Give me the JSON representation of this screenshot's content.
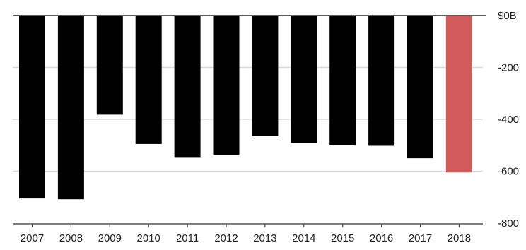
{
  "chart_data": {
    "type": "bar",
    "title": "",
    "xlabel": "",
    "ylabel": "",
    "categories": [
      "2007",
      "2008",
      "2009",
      "2010",
      "2011",
      "2012",
      "2013",
      "2014",
      "2015",
      "2016",
      "2017",
      "2018"
    ],
    "values": [
      -705,
      -708,
      -382,
      -495,
      -548,
      -538,
      -465,
      -490,
      -500,
      -502,
      -550,
      -605
    ],
    "bar_colors": [
      "#000000",
      "#000000",
      "#000000",
      "#000000",
      "#000000",
      "#000000",
      "#000000",
      "#000000",
      "#000000",
      "#000000",
      "#000000",
      "#d35a5a"
    ],
    "ylim": [
      -800,
      0
    ],
    "yticks": [
      {
        "value": 0,
        "label": "$0B"
      },
      {
        "value": -200,
        "label": "-200"
      },
      {
        "value": -400,
        "label": "-400"
      },
      {
        "value": -600,
        "label": "-600"
      },
      {
        "value": -800,
        "label": "-800"
      }
    ],
    "y_axis_position": "right",
    "grid": true,
    "legend": "none",
    "colors": {
      "bar": "#000000",
      "highlight_bar": "#d35a5a",
      "grid": "#d9d9d9",
      "zero_line": "#444444",
      "axis": "#555555",
      "text": "#222222"
    }
  }
}
